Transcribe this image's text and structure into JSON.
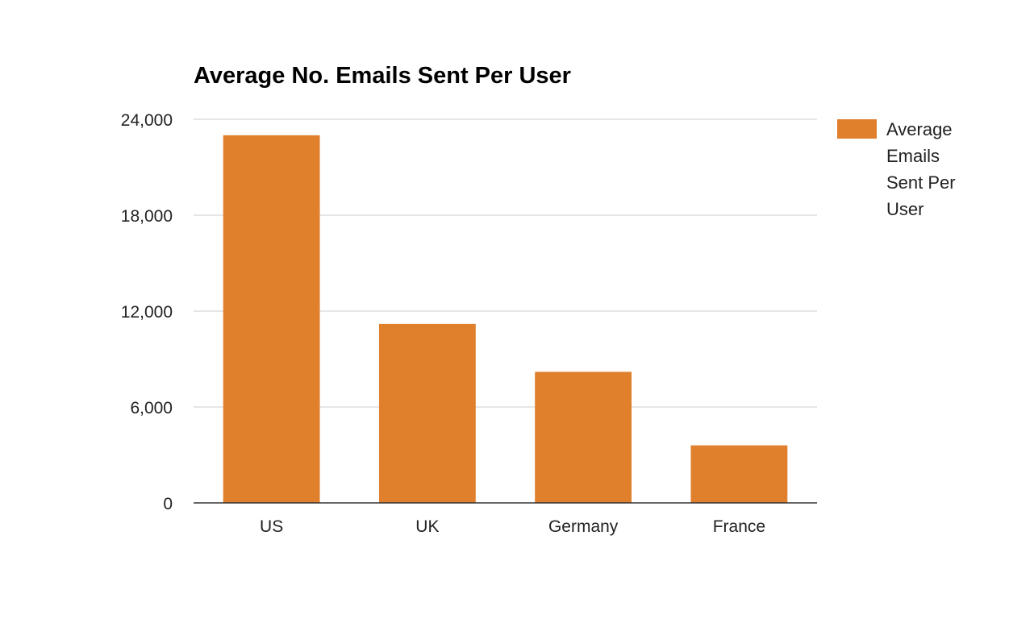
{
  "chart_data": {
    "type": "bar",
    "title": "Average No. Emails Sent Per User",
    "xlabel": "",
    "ylabel": "",
    "categories": [
      "US",
      "UK",
      "Germany",
      "France"
    ],
    "series": [
      {
        "name": "Average Emails Sent Per User",
        "values": [
          23000,
          11200,
          8200,
          3600
        ],
        "color": "#e07f2c"
      }
    ],
    "ylim": [
      0,
      24000
    ],
    "yticks": [
      0,
      6000,
      12000,
      18000,
      24000
    ],
    "ytick_labels": [
      "0",
      "6,000",
      "12,000",
      "18,000",
      "24,000"
    ],
    "grid": true,
    "legend_position": "right",
    "legend_lines": [
      "Average",
      "Emails",
      "Sent Per",
      "User"
    ]
  }
}
